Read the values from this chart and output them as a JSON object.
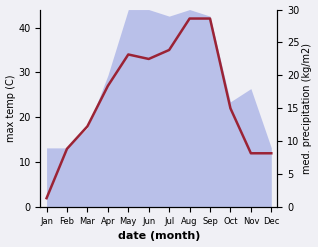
{
  "months": [
    "Jan",
    "Feb",
    "Mar",
    "Apr",
    "May",
    "Jun",
    "Jul",
    "Aug",
    "Sep",
    "Oct",
    "Nov",
    "Dec"
  ],
  "temperature": [
    2,
    13,
    18,
    27,
    34,
    33,
    35,
    42,
    42,
    22,
    12,
    12
  ],
  "precipitation": [
    9,
    9,
    12,
    20,
    30,
    30,
    29,
    30,
    29,
    16,
    18,
    9
  ],
  "temp_color": "#9b2335",
  "precip_color_fill": "#b0b8e8",
  "xlabel": "date (month)",
  "ylabel_left": "max temp (C)",
  "ylabel_right": "med. precipitation (kg/m2)",
  "ylim_left": [
    0,
    44
  ],
  "ylim_right": [
    0,
    30
  ],
  "yticks_left": [
    0,
    10,
    20,
    30,
    40
  ],
  "yticks_right": [
    0,
    5,
    10,
    15,
    20,
    25,
    30
  ],
  "background_color": "#f0f0f5"
}
